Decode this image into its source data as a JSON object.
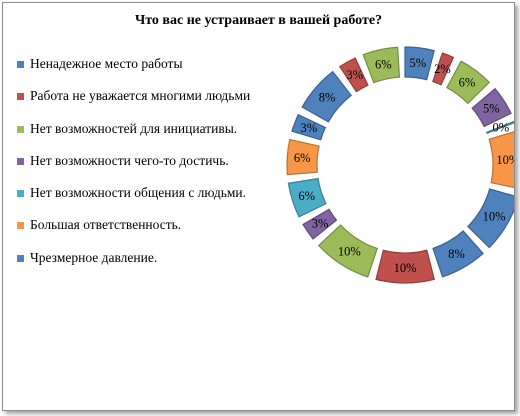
{
  "chart_data": {
    "type": "donut",
    "title": "Что вас не устраивает  в вашей работе?",
    "legend_position": "left",
    "categories": [
      "Ненадежное место работы",
      "Работа не уважается многими людьми",
      "Нет возможностей для инициативы.",
      "Нет возможности чего-то достичь.",
      "Нет возможности общения с людьми.",
      "Большая ответственность.",
      "Чрезмерное давление."
    ],
    "colors": [
      "#4f81bd",
      "#c0504d",
      "#9bbb59",
      "#8064a2",
      "#4bacc6",
      "#f79646",
      "#4f81bd"
    ],
    "rings": [
      [
        5,
        2,
        6,
        5,
        0,
        10,
        10
      ],
      [
        8,
        10,
        10,
        3,
        6,
        6,
        3
      ],
      [
        8,
        3,
        6
      ]
    ],
    "data_labels": [
      "5%",
      "2%",
      "6%",
      "5%",
      "0%",
      "10%",
      "10%",
      "8%",
      "10%",
      "10%",
      "3%",
      "6%",
      "6%",
      "3%",
      "8%",
      "3%",
      "6%"
    ]
  }
}
